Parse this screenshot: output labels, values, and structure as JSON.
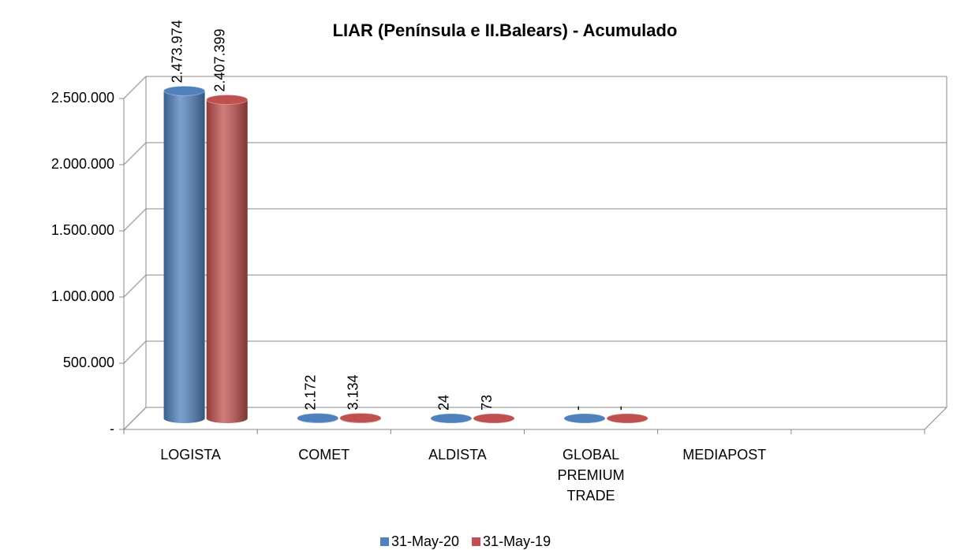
{
  "chart_data": {
    "type": "bar3d",
    "title": "LIAR  (Península e II.Balears) - Acumulado",
    "categories": [
      "LOGISTA",
      "COMET",
      "ALDISTA",
      "GLOBAL PREMIUM TRADE",
      "MEDIAPOST",
      null
    ],
    "series": [
      {
        "name": "31-May-20",
        "color": "#4f81bd",
        "values": [
          2473974,
          2172,
          24,
          0,
          null,
          null
        ],
        "value_labels": [
          "2.473.974",
          "2.172",
          "24",
          "-",
          null,
          null
        ]
      },
      {
        "name": "31-May-19",
        "color": "#c0504d",
        "values": [
          2407399,
          3134,
          73,
          0,
          null,
          null
        ],
        "value_labels": [
          "2.407.399",
          "3.134",
          "73",
          "-",
          null,
          null
        ]
      }
    ],
    "ylim": [
      0,
      2500000
    ],
    "yticks": [
      {
        "value": 0,
        "label": "-"
      },
      {
        "value": 500000,
        "label": "500.000"
      },
      {
        "value": 1000000,
        "label": "1.000.000"
      },
      {
        "value": 1500000,
        "label": "1.500.000"
      },
      {
        "value": 2000000,
        "label": "2.000.000"
      },
      {
        "value": 2500000,
        "label": "2.500.000"
      }
    ],
    "grid": true,
    "legend": "bottom"
  }
}
